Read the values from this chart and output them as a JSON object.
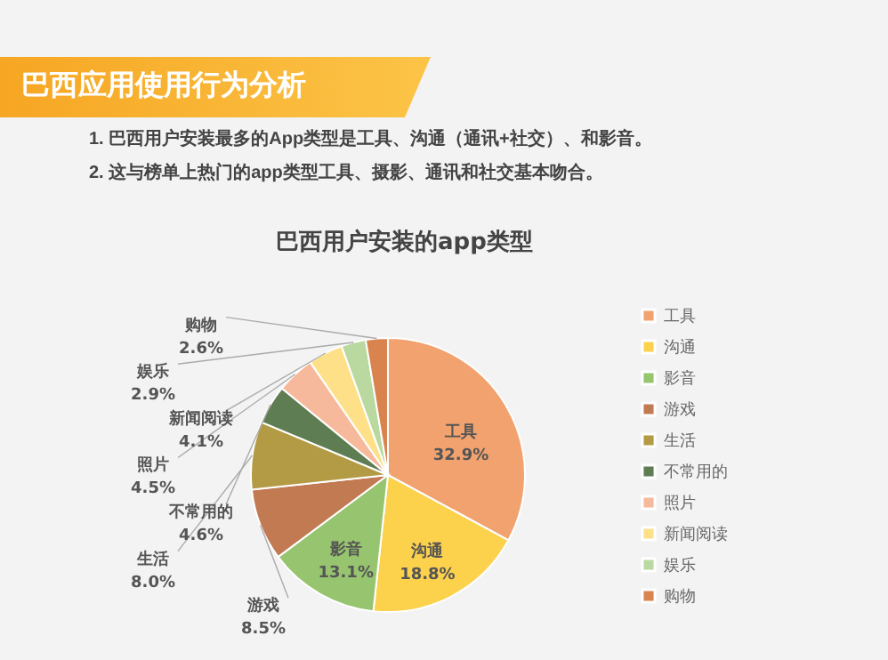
{
  "chart_data": {
    "type": "pie",
    "title": "巴西用户安装的app类型",
    "annotations": [
      "巴西应用使用行为分析",
      "1. 巴西用户安装最多的App类型是工具、沟通（通讯+社交）、和影音。",
      "2. 这与榜单上热门的app类型工具、摄影、通讯和社交基本吻合。"
    ],
    "categories": [
      "工具",
      "沟通",
      "影音",
      "游戏",
      "生活",
      "不常用的",
      "照片",
      "新闻阅读",
      "娱乐",
      "购物"
    ],
    "values": [
      32.9,
      18.8,
      13.1,
      8.5,
      8.0,
      4.6,
      4.5,
      4.1,
      2.9,
      2.6
    ],
    "value_labels": [
      "32.9%",
      "18.8%",
      "13.1%",
      "8.5%",
      "8.0%",
      "4.6%",
      "4.5%",
      "4.1%",
      "2.9%",
      "2.6%"
    ],
    "colors": [
      "#f2a26e",
      "#fcd14c",
      "#97c46f",
      "#c27a52",
      "#b39b45",
      "#5f7d52",
      "#f6b99b",
      "#fde088",
      "#b9d9a1",
      "#d9834f"
    ],
    "legend": "right"
  }
}
